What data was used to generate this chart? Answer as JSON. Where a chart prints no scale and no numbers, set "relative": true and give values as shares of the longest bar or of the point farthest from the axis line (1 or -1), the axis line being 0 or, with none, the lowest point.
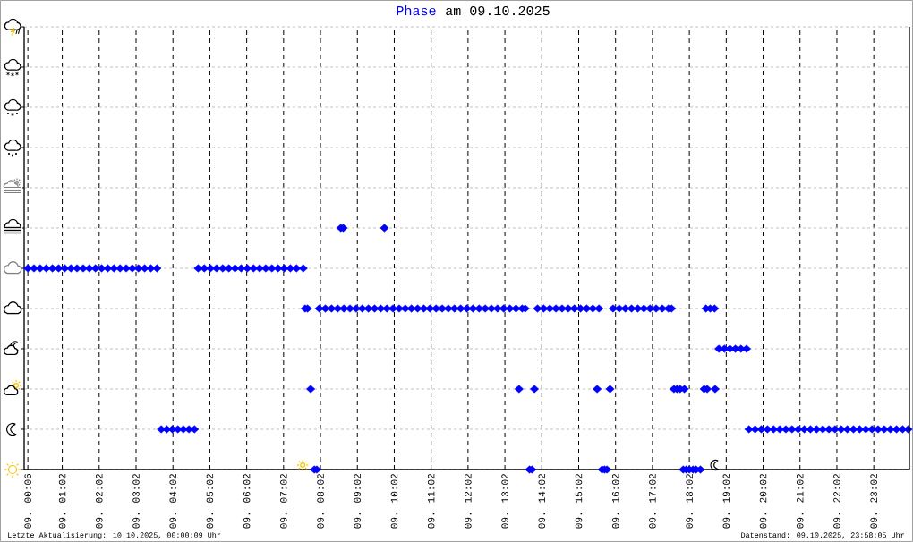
{
  "chart_data": {
    "type": "scatter",
    "title": "am 09.10.2025",
    "annotations": [
      "Letzte Aktualisierung: 10.10.2025, 00:00:09 Uhr",
      "Datenstand: 09.10.2025, 23:58:05 Uhr"
    ],
    "xlim": [
      "2025-10-09T00:00",
      "2025-10-10T00:00"
    ],
    "xticks": [
      {
        "value": "2025-10-09T00:06",
        "label": "09. 00:06"
      },
      {
        "value": "2025-10-09T01:02",
        "label": "09. 01:02"
      },
      {
        "value": "2025-10-09T02:02",
        "label": "09. 02:02"
      },
      {
        "value": "2025-10-09T03:02",
        "label": "09. 03:02"
      },
      {
        "value": "2025-10-09T04:02",
        "label": "09. 04:02"
      },
      {
        "value": "2025-10-09T05:02",
        "label": "09. 05:02"
      },
      {
        "value": "2025-10-09T06:02",
        "label": "09. 06:02"
      },
      {
        "value": "2025-10-09T07:02",
        "label": "09. 07:02"
      },
      {
        "value": "2025-10-09T08:02",
        "label": "09. 08:02"
      },
      {
        "value": "2025-10-09T09:02",
        "label": "09. 09:02"
      },
      {
        "value": "2025-10-09T10:02",
        "label": "09. 10:02"
      },
      {
        "value": "2025-10-09T11:02",
        "label": "09. 11:02"
      },
      {
        "value": "2025-10-09T12:02",
        "label": "09. 12:02"
      },
      {
        "value": "2025-10-09T13:02",
        "label": "09. 13:02"
      },
      {
        "value": "2025-10-09T14:02",
        "label": "09. 14:02"
      },
      {
        "value": "2025-10-09T15:02",
        "label": "09. 15:02"
      },
      {
        "value": "2025-10-09T16:02",
        "label": "09. 16:02"
      },
      {
        "value": "2025-10-09T17:02",
        "label": "09. 17:02"
      },
      {
        "value": "2025-10-09T18:02",
        "label": "09. 18:02"
      },
      {
        "value": "2025-10-09T19:02",
        "label": "09. 19:02"
      },
      {
        "value": "2025-10-09T20:02",
        "label": "09. 20:02"
      },
      {
        "value": "2025-10-09T21:02",
        "label": "09. 21:02"
      },
      {
        "value": "2025-10-09T22:02",
        "label": "09. 22:02"
      },
      {
        "value": "2025-10-09T23:02",
        "label": "09. 23:02"
      }
    ],
    "relative": true,
    "grid": true,
    "marker": "diamond",
    "series": [
      {
        "name": "Phase",
        "color": "#0000ff",
        "x": [
          "2025-10-09T00:06",
          "2025-10-09T00:16",
          "2025-10-09T00:26",
          "2025-10-09T00:36",
          "2025-10-09T00:46",
          "2025-10-09T00:56",
          "2025-10-09T01:06",
          "2025-10-09T01:16",
          "2025-10-09T01:26",
          "2025-10-09T01:36",
          "2025-10-09T01:46",
          "2025-10-09T01:56",
          "2025-10-09T02:06",
          "2025-10-09T02:16",
          "2025-10-09T02:26",
          "2025-10-09T02:36",
          "2025-10-09T02:46",
          "2025-10-09T02:56",
          "2025-10-09T03:06",
          "2025-10-09T03:16",
          "2025-10-09T03:26",
          "2025-10-09T03:36",
          "2025-10-09T03:43",
          "2025-10-09T03:52",
          "2025-10-09T04:01",
          "2025-10-09T04:10",
          "2025-10-09T04:19",
          "2025-10-09T04:28",
          "2025-10-09T04:37",
          "2025-10-09T04:43",
          "2025-10-09T04:53",
          "2025-10-09T05:03",
          "2025-10-09T05:13",
          "2025-10-09T05:23",
          "2025-10-09T05:33",
          "2025-10-09T05:43",
          "2025-10-09T05:53",
          "2025-10-09T06:03",
          "2025-10-09T06:13",
          "2025-10-09T06:23",
          "2025-10-09T06:33",
          "2025-10-09T06:43",
          "2025-10-09T06:53",
          "2025-10-09T07:03",
          "2025-10-09T07:13",
          "2025-10-09T07:23",
          "2025-10-09T07:34",
          "2025-10-09T07:37",
          "2025-10-09T07:41",
          "2025-10-09T07:46",
          "2025-10-09T07:52",
          "2025-10-09T07:56",
          "2025-10-09T08:00",
          "2025-10-09T08:10",
          "2025-10-09T08:20",
          "2025-10-09T08:30",
          "2025-10-09T08:35",
          "2025-10-09T08:39",
          "2025-10-09T08:40",
          "2025-10-09T08:50",
          "2025-10-09T09:00",
          "2025-10-09T09:10",
          "2025-10-09T09:20",
          "2025-10-09T09:30",
          "2025-10-09T09:40",
          "2025-10-09T09:46",
          "2025-10-09T09:50",
          "2025-10-09T10:00",
          "2025-10-09T10:10",
          "2025-10-09T10:20",
          "2025-10-09T10:30",
          "2025-10-09T10:40",
          "2025-10-09T10:50",
          "2025-10-09T11:00",
          "2025-10-09T11:10",
          "2025-10-09T11:20",
          "2025-10-09T11:30",
          "2025-10-09T11:40",
          "2025-10-09T11:50",
          "2025-10-09T12:00",
          "2025-10-09T12:10",
          "2025-10-09T12:20",
          "2025-10-09T12:30",
          "2025-10-09T12:40",
          "2025-10-09T12:50",
          "2025-10-09T13:00",
          "2025-10-09T13:10",
          "2025-10-09T13:20",
          "2025-10-09T13:25",
          "2025-10-09T13:30",
          "2025-10-09T13:35",
          "2025-10-09T13:42",
          "2025-10-09T13:46",
          "2025-10-09T13:50",
          "2025-10-09T13:55",
          "2025-10-09T14:05",
          "2025-10-09T14:15",
          "2025-10-09T14:25",
          "2025-10-09T14:35",
          "2025-10-09T14:45",
          "2025-10-09T14:55",
          "2025-10-09T15:05",
          "2025-10-09T15:15",
          "2025-10-09T15:25",
          "2025-10-09T15:32",
          "2025-10-09T15:35",
          "2025-10-09T15:40",
          "2025-10-09T15:44",
          "2025-10-09T15:48",
          "2025-10-09T15:53",
          "2025-10-09T15:58",
          "2025-10-09T16:08",
          "2025-10-09T16:18",
          "2025-10-09T16:28",
          "2025-10-09T16:38",
          "2025-10-09T16:48",
          "2025-10-09T16:58",
          "2025-10-09T17:08",
          "2025-10-09T17:18",
          "2025-10-09T17:28",
          "2025-10-09T17:33",
          "2025-10-09T17:37",
          "2025-10-09T17:42",
          "2025-10-09T17:47",
          "2025-10-09T17:52",
          "2025-10-09T17:54",
          "2025-10-09T17:57",
          "2025-10-09T18:02",
          "2025-10-09T18:08",
          "2025-10-09T18:13",
          "2025-10-09T18:20",
          "2025-10-09T18:26",
          "2025-10-09T18:29",
          "2025-10-09T18:31",
          "2025-10-09T18:36",
          "2025-10-09T18:43",
          "2025-10-09T18:44",
          "2025-10-09T18:50",
          "2025-10-09T18:59",
          "2025-10-09T19:08",
          "2025-10-09T19:17",
          "2025-10-09T19:26",
          "2025-10-09T19:35",
          "2025-10-09T19:39",
          "2025-10-09T19:49",
          "2025-10-09T19:59",
          "2025-10-09T20:09",
          "2025-10-09T20:19",
          "2025-10-09T20:29",
          "2025-10-09T20:39",
          "2025-10-09T20:49",
          "2025-10-09T20:59",
          "2025-10-09T21:09",
          "2025-10-09T21:19",
          "2025-10-09T21:29",
          "2025-10-09T21:39",
          "2025-10-09T21:49",
          "2025-10-09T21:59",
          "2025-10-09T22:09",
          "2025-10-09T22:19",
          "2025-10-09T22:29",
          "2025-10-09T22:39",
          "2025-10-09T22:49",
          "2025-10-09T22:59",
          "2025-10-09T23:09",
          "2025-10-09T23:19",
          "2025-10-09T23:29",
          "2025-10-09T23:39",
          "2025-10-09T23:49",
          "2025-10-09T23:58"
        ],
        "values": [
          0.8333,
          0.8333,
          0.8333,
          0.8333,
          0.8333,
          0.8333,
          0.8333,
          0.8333,
          0.8333,
          0.8333,
          0.8333,
          0.8333,
          0.8333,
          0.8333,
          0.8333,
          0.8333,
          0.8333,
          0.8333,
          0.8333,
          0.8333,
          0.8333,
          0.8333,
          0.1667,
          0.1667,
          0.1667,
          0.1667,
          0.1667,
          0.1667,
          0.1667,
          0.8333,
          0.8333,
          0.8333,
          0.8333,
          0.8333,
          0.8333,
          0.8333,
          0.8333,
          0.8333,
          0.8333,
          0.8333,
          0.8333,
          0.8333,
          0.8333,
          0.8333,
          0.8333,
          0.8333,
          0.8333,
          0.6667,
          0.6667,
          0.3333,
          0,
          0,
          0.6667,
          0.6667,
          0.6667,
          0.6667,
          1,
          1,
          0.6667,
          0.6667,
          0.6667,
          0.6667,
          0.6667,
          0.6667,
          0.6667,
          1,
          0.6667,
          0.6667,
          0.6667,
          0.6667,
          0.6667,
          0.6667,
          0.6667,
          0.6667,
          0.6667,
          0.6667,
          0.6667,
          0.6667,
          0.6667,
          0.6667,
          0.6667,
          0.6667,
          0.6667,
          0.6667,
          0.6667,
          0.6667,
          0.6667,
          0.6667,
          0.3333,
          0.6667,
          0.6667,
          0,
          0,
          0.3333,
          0.6667,
          0.6667,
          0.6667,
          0.6667,
          0.6667,
          0.6667,
          0.6667,
          0.6667,
          0.6667,
          0.6667,
          0.3333,
          0.6667,
          0,
          0,
          0,
          0.3333,
          0.6667,
          0.6667,
          0.6667,
          0.6667,
          0.6667,
          0.6667,
          0.6667,
          0.6667,
          0.6667,
          0.6667,
          0.6667,
          0.3333,
          0.3333,
          0.3333,
          0,
          0.3333,
          0,
          0,
          0,
          0,
          0,
          0.3333,
          0.6667,
          0.3333,
          0.6667,
          0.6667,
          0.3333,
          0.5,
          0.5,
          0.5,
          0.5,
          0.5,
          0.5,
          0.1667,
          0.1667,
          0.1667,
          0.1667,
          0.1667,
          0.1667,
          0.1667,
          0.1667,
          0.1667,
          0.1667,
          0.1667,
          0.1667,
          0.1667,
          0.1667,
          0.1667,
          0.1667,
          0.1667,
          0.1667,
          0.1667,
          0.1667,
          0.1667,
          0.1667,
          0.1667,
          0.1667,
          0.1667,
          0.1667,
          0.1667
        ]
      }
    ]
  }
}
